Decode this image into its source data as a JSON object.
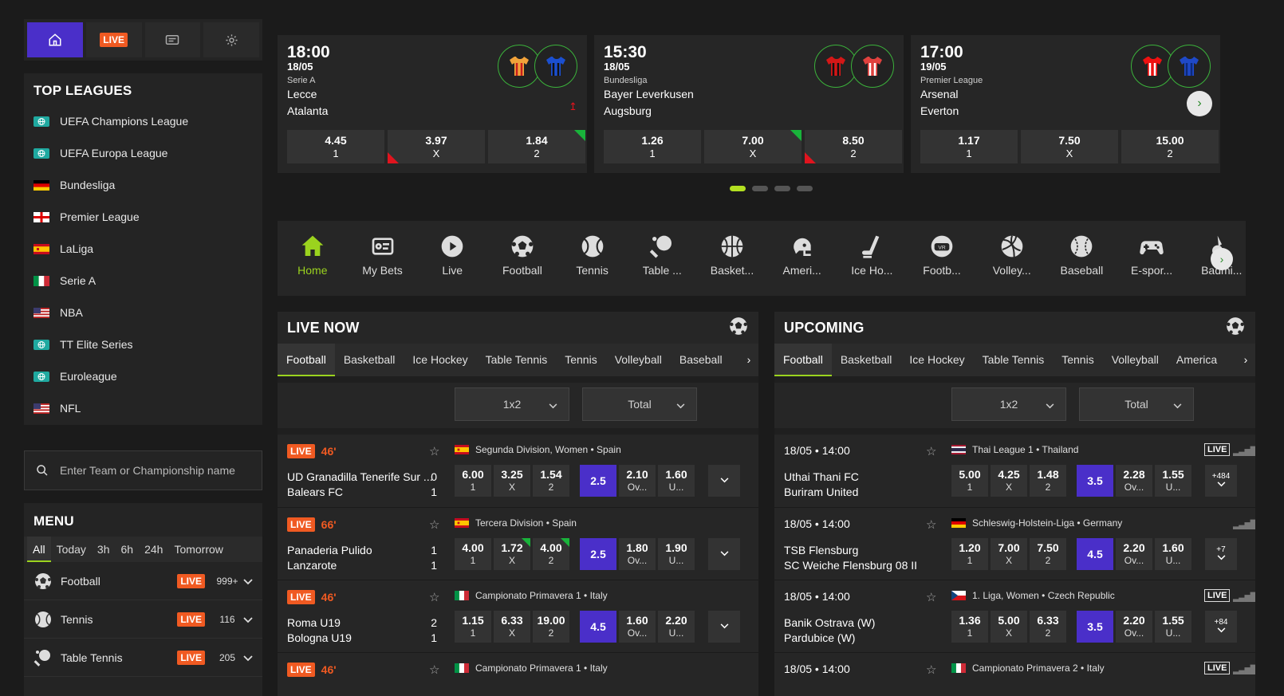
{
  "nav": {
    "live_label": "LIVE"
  },
  "top_leagues": {
    "title": "TOP LEAGUES",
    "items": [
      {
        "label": "UEFA Champions League",
        "flag": "world"
      },
      {
        "label": "UEFA Europa League",
        "flag": "world"
      },
      {
        "label": "Bundesliga",
        "flag": "de"
      },
      {
        "label": "Premier League",
        "flag": "en"
      },
      {
        "label": "LaLiga",
        "flag": "es"
      },
      {
        "label": "Serie A",
        "flag": "it"
      },
      {
        "label": "NBA",
        "flag": "us"
      },
      {
        "label": "TT Elite Series",
        "flag": "world"
      },
      {
        "label": "Euroleague",
        "flag": "world"
      },
      {
        "label": "NFL",
        "flag": "us"
      }
    ]
  },
  "search": {
    "placeholder": "Enter Team or Championship name"
  },
  "menu": {
    "title": "MENU",
    "tabs": [
      "All",
      "Today",
      "3h",
      "6h",
      "24h",
      "Tomorrow"
    ],
    "sports": [
      {
        "label": "Football",
        "live": "LIVE",
        "count": "999+"
      },
      {
        "label": "Tennis",
        "live": "LIVE",
        "count": "116"
      },
      {
        "label": "Table Tennis",
        "live": "LIVE",
        "count": "205"
      }
    ]
  },
  "featured": [
    {
      "time": "18:00",
      "date": "18/05",
      "league": "Serie A",
      "home": "Lecce",
      "away": "Atalanta",
      "odds": [
        [
          "4.45",
          "1"
        ],
        [
          "3.97",
          "X"
        ],
        [
          "1.84",
          "2"
        ]
      ]
    },
    {
      "time": "15:30",
      "date": "18/05",
      "league": "Bundesliga",
      "home": "Bayer Leverkusen",
      "away": "Augsburg",
      "odds": [
        [
          "1.26",
          "1"
        ],
        [
          "7.00",
          "X"
        ],
        [
          "8.50",
          "2"
        ]
      ]
    },
    {
      "time": "17:00",
      "date": "19/05",
      "league": "Premier League",
      "home": "Arsenal",
      "away": "Everton",
      "odds": [
        [
          "1.17",
          "1"
        ],
        [
          "7.50",
          "X"
        ],
        [
          "15.00",
          "2"
        ]
      ]
    }
  ],
  "sports_bar": [
    "Home",
    "My Bets",
    "Live",
    "Football",
    "Tennis",
    "Table ...",
    "Basket...",
    "Ameri...",
    "Ice Ho...",
    "Footb...",
    "Volley...",
    "Baseball",
    "E-spor...",
    "Badmi..."
  ],
  "live_now": {
    "title": "LIVE NOW",
    "tabs": [
      "Football",
      "Basketball",
      "Ice Hockey",
      "Table Tennis",
      "Tennis",
      "Volleyball",
      "Baseball"
    ],
    "filter1": "1x2",
    "filter2": "Total",
    "matches": [
      {
        "live": "LIVE",
        "minute": "46'",
        "league": "Segunda Division, Women • Spain",
        "flag": "es",
        "home": "UD Granadilla Tenerife Sur ...",
        "away": "Balears FC",
        "score_h": "0",
        "score_a": "1",
        "odds": [
          [
            "6.00",
            "1"
          ],
          [
            "3.25",
            "X"
          ],
          [
            "1.54",
            "2"
          ]
        ],
        "total": "2.5",
        "ou": [
          [
            "2.10",
            "Ov..."
          ],
          [
            "1.60",
            "U..."
          ]
        ]
      },
      {
        "live": "LIVE",
        "minute": "66'",
        "league": "Tercera Division • Spain",
        "flag": "es",
        "home": "Panaderia Pulido",
        "away": "Lanzarote",
        "score_h": "1",
        "score_a": "1",
        "odds": [
          [
            "4.00",
            "1"
          ],
          [
            "1.72",
            "X"
          ],
          [
            "4.00",
            "2"
          ]
        ],
        "total": "2.5",
        "ou": [
          [
            "1.80",
            "Ov..."
          ],
          [
            "1.90",
            "U..."
          ]
        ]
      },
      {
        "live": "LIVE",
        "minute": "46'",
        "league": "Campionato Primavera 1 • Italy",
        "flag": "it",
        "home": "Roma U19",
        "away": "Bologna U19",
        "score_h": "2",
        "score_a": "1",
        "odds": [
          [
            "1.15",
            "1"
          ],
          [
            "6.33",
            "X"
          ],
          [
            "19.00",
            "2"
          ]
        ],
        "total": "4.5",
        "ou": [
          [
            "1.60",
            "Ov..."
          ],
          [
            "2.20",
            "U..."
          ]
        ]
      },
      {
        "live": "LIVE",
        "minute": "46'",
        "league": "Campionato Primavera 1 • Italy",
        "flag": "it",
        "home": "",
        "away": "",
        "score_h": "",
        "score_a": "",
        "odds": [],
        "total": "",
        "ou": []
      }
    ]
  },
  "upcoming": {
    "title": "UPCOMING",
    "tabs": [
      "Football",
      "Basketball",
      "Ice Hockey",
      "Table Tennis",
      "Tennis",
      "Volleyball",
      "America"
    ],
    "filter1": "1x2",
    "filter2": "Total",
    "matches": [
      {
        "date": "18/05 • 14:00",
        "league": "Thai League 1 • Thailand",
        "flag": "th",
        "live": "LIVE",
        "home": "Uthai Thani FC",
        "away": "Buriram United",
        "odds": [
          [
            "5.00",
            "1"
          ],
          [
            "4.25",
            "X"
          ],
          [
            "1.48",
            "2"
          ]
        ],
        "total": "3.5",
        "ou": [
          [
            "2.28",
            "Ov..."
          ],
          [
            "1.55",
            "U..."
          ]
        ],
        "more": "+484"
      },
      {
        "date": "18/05 • 14:00",
        "league": "Schleswig-Holstein-Liga • Germany",
        "flag": "de",
        "live": "",
        "home": "TSB Flensburg",
        "away": "SC Weiche Flensburg 08 II",
        "odds": [
          [
            "1.20",
            "1"
          ],
          [
            "7.00",
            "X"
          ],
          [
            "7.50",
            "2"
          ]
        ],
        "total": "4.5",
        "ou": [
          [
            "2.20",
            "Ov..."
          ],
          [
            "1.60",
            "U..."
          ]
        ],
        "more": "+7"
      },
      {
        "date": "18/05 • 14:00",
        "league": "1. Liga, Women • Czech Republic",
        "flag": "cz",
        "live": "LIVE",
        "home": "Banik Ostrava (W)",
        "away": "Pardubice (W)",
        "odds": [
          [
            "1.36",
            "1"
          ],
          [
            "5.00",
            "X"
          ],
          [
            "6.33",
            "2"
          ]
        ],
        "total": "3.5",
        "ou": [
          [
            "2.20",
            "Ov..."
          ],
          [
            "1.55",
            "U..."
          ]
        ],
        "more": "+84"
      },
      {
        "date": "18/05 • 14:00",
        "league": "Campionato Primavera 2 • Italy",
        "flag": "it",
        "live": "LIVE",
        "home": "",
        "away": "",
        "odds": [],
        "total": "",
        "ou": [],
        "more": ""
      }
    ]
  },
  "colors": {
    "accent": "#9bd31e",
    "live": "#f05a22",
    "total": "#4a2fc9",
    "up": "#19b33b",
    "down": "#e0141e"
  }
}
